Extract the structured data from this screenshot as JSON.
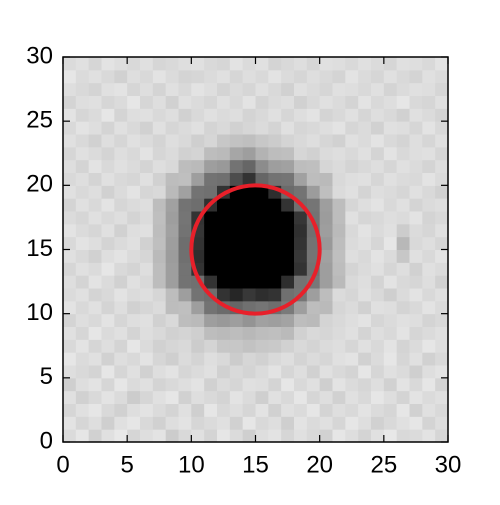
{
  "chart_data": {
    "type": "image",
    "colormap": "gray_r",
    "vmin": 0,
    "vmax": 100,
    "origin": "lower",
    "xlim": [
      0,
      30
    ],
    "ylim": [
      0,
      30
    ],
    "xticks": [
      0,
      5,
      10,
      15,
      20,
      25,
      30
    ],
    "yticks": [
      0,
      5,
      10,
      15,
      20,
      25,
      30
    ],
    "z": [
      [
        14,
        10,
        18,
        12,
        9,
        16,
        13,
        11,
        20,
        15,
        12,
        17,
        10,
        14,
        19,
        13,
        11,
        16,
        12,
        15,
        18,
        10,
        13,
        17,
        12,
        9,
        15,
        14,
        11,
        16
      ],
      [
        11,
        16,
        13,
        19,
        12,
        10,
        15,
        18,
        13,
        11,
        16,
        14,
        12,
        18,
        10,
        15,
        13,
        19,
        11,
        14,
        12,
        16,
        10,
        13,
        18,
        15,
        12,
        10,
        17,
        13
      ],
      [
        16,
        12,
        10,
        15,
        18,
        13,
        11,
        14,
        17,
        12,
        19,
        10,
        15,
        13,
        16,
        11,
        18,
        12,
        14,
        10,
        17,
        13,
        15,
        11,
        14,
        16,
        10,
        18,
        12,
        15
      ],
      [
        12,
        18,
        15,
        11,
        14,
        20,
        16,
        12,
        10,
        18,
        13,
        15,
        17,
        11,
        14,
        19,
        12,
        15,
        10,
        16,
        13,
        18,
        12,
        15,
        10,
        13,
        17,
        11,
        14,
        12
      ],
      [
        19,
        13,
        11,
        16,
        10,
        14,
        12,
        17,
        15,
        13,
        11,
        18,
        14,
        16,
        12,
        13,
        17,
        10,
        15,
        12,
        19,
        11,
        14,
        16,
        13,
        18,
        11,
        15,
        10,
        17
      ],
      [
        13,
        15,
        17,
        10,
        16,
        12,
        18,
        13,
        11,
        16,
        14,
        12,
        18,
        15,
        17,
        14,
        11,
        16,
        13,
        18,
        12,
        15,
        17,
        10,
        16,
        12,
        14,
        19,
        13,
        11
      ],
      [
        10,
        14,
        12,
        18,
        13,
        15,
        11,
        16,
        19,
        14,
        17,
        13,
        15,
        20,
        16,
        18,
        15,
        13,
        17,
        14,
        16,
        12,
        11,
        18,
        14,
        10,
        16,
        12,
        18,
        15
      ],
      [
        15,
        11,
        16,
        13,
        17,
        10,
        14,
        18,
        16,
        15,
        20,
        17,
        22,
        22,
        24,
        22,
        21,
        18,
        15,
        17,
        14,
        13,
        16,
        12,
        15,
        11,
        17,
        14,
        10,
        13
      ],
      [
        12,
        16,
        10,
        14,
        12,
        17,
        13,
        15,
        18,
        17,
        19,
        26,
        27,
        26,
        28,
        26,
        25,
        27,
        18,
        15,
        16,
        14,
        12,
        17,
        13,
        15,
        11,
        16,
        14,
        12
      ],
      [
        17,
        13,
        15,
        11,
        16,
        13,
        12,
        18,
        15,
        26,
        27,
        38,
        40,
        38,
        42,
        37,
        38,
        36,
        26,
        27,
        17,
        15,
        13,
        11,
        16,
        14,
        12,
        13,
        17,
        15
      ],
      [
        11,
        15,
        12,
        17,
        13,
        18,
        16,
        14,
        26,
        25,
        38,
        55,
        58,
        60,
        56,
        54,
        57,
        52,
        38,
        26,
        27,
        16,
        14,
        18,
        12,
        13,
        17,
        15,
        11,
        14
      ],
      [
        14,
        12,
        17,
        15,
        11,
        14,
        13,
        16,
        26,
        38,
        55,
        57,
        80,
        85,
        78,
        82,
        80,
        56,
        54,
        38,
        26,
        14,
        16,
        12,
        15,
        19,
        14,
        11,
        15,
        12
      ],
      [
        13,
        17,
        11,
        14,
        18,
        12,
        15,
        26,
        38,
        55,
        56,
        80,
        100,
        100,
        100,
        100,
        100,
        82,
        55,
        53,
        38,
        27,
        15,
        13,
        17,
        11,
        15,
        16,
        13,
        18
      ],
      [
        16,
        12,
        14,
        10,
        15,
        17,
        13,
        26,
        38,
        55,
        80,
        100,
        100,
        100,
        100,
        100,
        100,
        100,
        80,
        55,
        38,
        26,
        17,
        14,
        12,
        16,
        13,
        18,
        12,
        14
      ],
      [
        12,
        15,
        18,
        13,
        11,
        14,
        16,
        27,
        39,
        56,
        82,
        100,
        100,
        100,
        100,
        100,
        100,
        100,
        78,
        54,
        37,
        25,
        13,
        15,
        11,
        14,
        22,
        12,
        15,
        11
      ],
      [
        15,
        11,
        13,
        17,
        14,
        12,
        18,
        25,
        38,
        57,
        80,
        100,
        100,
        100,
        100,
        100,
        100,
        100,
        80,
        55,
        40,
        26,
        14,
        12,
        16,
        10,
        28,
        15,
        13,
        16
      ],
      [
        11,
        14,
        16,
        12,
        18,
        13,
        12,
        26,
        37,
        55,
        79,
        100,
        100,
        100,
        100,
        100,
        100,
        100,
        81,
        56,
        38,
        27,
        15,
        11,
        14,
        12,
        20,
        14,
        16,
        12
      ],
      [
        14,
        16,
        12,
        15,
        13,
        17,
        14,
        25,
        38,
        54,
        80,
        100,
        100,
        100,
        100,
        100,
        100,
        100,
        79,
        55,
        39,
        26,
        12,
        16,
        15,
        13,
        14,
        11,
        17,
        15
      ],
      [
        17,
        12,
        15,
        11,
        16,
        14,
        13,
        26,
        37,
        55,
        57,
        81,
        100,
        100,
        100,
        100,
        100,
        80,
        56,
        54,
        38,
        26,
        16,
        13,
        11,
        15,
        12,
        17,
        14,
        13
      ],
      [
        12,
        15,
        13,
        18,
        14,
        11,
        16,
        15,
        27,
        37,
        55,
        56,
        80,
        100,
        100,
        100,
        82,
        58,
        55,
        39,
        25,
        14,
        12,
        17,
        13,
        14,
        16,
        12,
        15,
        18
      ],
      [
        15,
        13,
        17,
        12,
        15,
        16,
        12,
        18,
        26,
        25,
        38,
        55,
        56,
        70,
        80,
        60,
        55,
        54,
        37,
        26,
        27,
        15,
        13,
        12,
        16,
        12,
        14,
        15,
        11,
        14
      ],
      [
        13,
        17,
        11,
        15,
        12,
        14,
        17,
        13,
        15,
        26,
        27,
        38,
        40,
        55,
        60,
        45,
        38,
        37,
        26,
        25,
        16,
        14,
        17,
        15,
        13,
        16,
        12,
        14,
        17,
        13
      ],
      [
        16,
        12,
        14,
        17,
        13,
        15,
        11,
        16,
        14,
        18,
        17,
        26,
        27,
        35,
        38,
        30,
        26,
        25,
        16,
        18,
        14,
        13,
        15,
        12,
        17,
        11,
        15,
        13,
        12,
        16
      ],
      [
        12,
        15,
        18,
        13,
        16,
        12,
        14,
        17,
        13,
        15,
        19,
        16,
        22,
        24,
        25,
        22,
        20,
        17,
        15,
        13,
        16,
        18,
        12,
        14,
        11,
        15,
        17,
        13,
        16,
        12
      ],
      [
        15,
        11,
        13,
        17,
        12,
        15,
        18,
        12,
        16,
        14,
        12,
        17,
        15,
        18,
        16,
        14,
        17,
        12,
        16,
        15,
        13,
        11,
        16,
        14,
        18,
        12,
        13,
        16,
        11,
        15
      ],
      [
        11,
        16,
        14,
        10,
        17,
        13,
        12,
        15,
        13,
        18,
        15,
        12,
        14,
        13,
        17,
        15,
        12,
        16,
        13,
        11,
        17,
        15,
        12,
        16,
        13,
        15,
        18,
        12,
        14,
        17
      ],
      [
        17,
        13,
        12,
        16,
        14,
        10,
        16,
        13,
        18,
        12,
        14,
        16,
        12,
        15,
        11,
        17,
        14,
        13,
        18,
        15,
        12,
        14,
        17,
        11,
        15,
        13,
        10,
        15,
        16,
        12
      ],
      [
        13,
        15,
        17,
        12,
        11,
        16,
        13,
        17,
        12,
        15,
        11,
        13,
        17,
        14,
        16,
        12,
        15,
        18,
        12,
        14,
        16,
        12,
        13,
        15,
        12,
        17,
        14,
        12,
        13,
        16
      ],
      [
        10,
        14,
        12,
        15,
        18,
        13,
        15,
        11,
        14,
        17,
        16,
        14,
        12,
        16,
        13,
        15,
        11,
        14,
        16,
        13,
        15,
        17,
        11,
        14,
        16,
        12,
        15,
        17,
        12,
        14
      ],
      [
        14,
        12,
        16,
        11,
        13,
        15,
        12,
        16,
        15,
        13,
        12,
        15,
        16,
        11,
        14,
        12,
        17,
        15,
        13,
        16,
        12,
        13,
        15,
        12,
        14,
        16,
        12,
        13,
        15,
        11
      ]
    ],
    "circle": {
      "x": 15,
      "y": 15,
      "r": 5,
      "color": "#e8202a"
    }
  }
}
